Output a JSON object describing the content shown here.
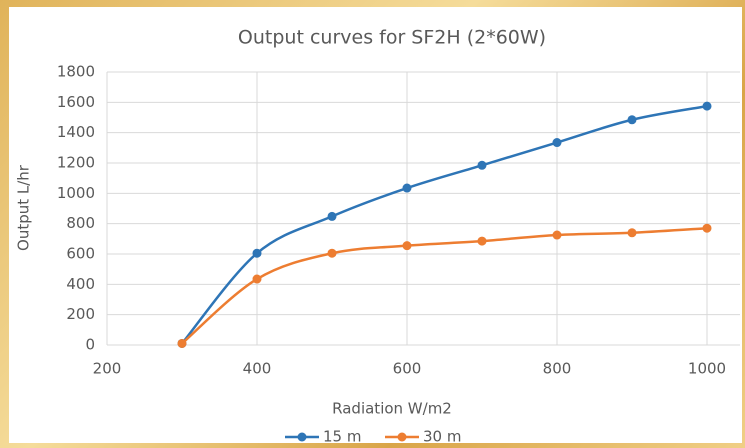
{
  "chart_data": {
    "type": "line",
    "title": "Output curves for SF2H (2*60W)",
    "x_label": "Radiation W/m2",
    "y_label": "Output L/hr",
    "x": [
      300,
      400,
      500,
      600,
      700,
      800,
      900,
      1000
    ],
    "series": [
      {
        "name": "15 m",
        "color": "#2e75b6",
        "values": [
          10,
          605,
          848,
          1035,
          1185,
          1335,
          1485,
          1575
        ]
      },
      {
        "name": "30 m",
        "color": "#ed7d31",
        "values": [
          10,
          435,
          605,
          655,
          685,
          725,
          740,
          770
        ]
      }
    ],
    "xlim": [
      200,
      1000
    ],
    "xticks": [
      200,
      400,
      600,
      800,
      1000
    ],
    "ylim": [
      0,
      1800
    ],
    "yticks": [
      0,
      200,
      400,
      600,
      800,
      1000,
      1200,
      1400,
      1600,
      1800
    ],
    "grid": true,
    "smooth": true,
    "legend": "bottom"
  }
}
